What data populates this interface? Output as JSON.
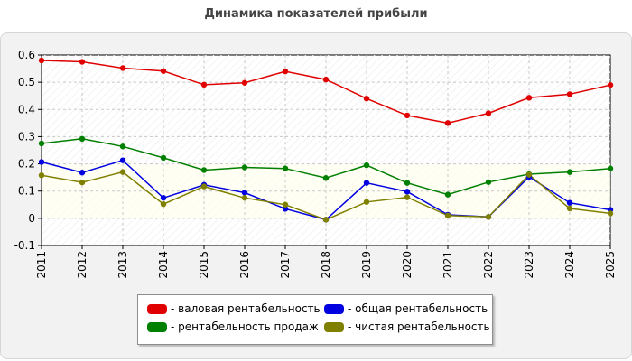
{
  "chart_data": {
    "type": "line",
    "title": "Динамика показателей прибыли",
    "x": [
      "2011",
      "2012",
      "2013",
      "2014",
      "2015",
      "2016",
      "2017",
      "2018",
      "2019",
      "2020",
      "2021",
      "2022",
      "2023",
      "2024",
      "2025"
    ],
    "ylim": [
      -0.1,
      0.6
    ],
    "yticks": [
      "0.6",
      "0.5",
      "0.4",
      "0.3",
      "0.2",
      "0.1",
      "0",
      "-0.1"
    ],
    "ytick_values": [
      0.6,
      0.5,
      0.4,
      0.3,
      0.2,
      0.1,
      0,
      -0.1
    ],
    "grid": true,
    "legend_position": "bottom",
    "series": [
      {
        "name": "- валовая рентабельность",
        "color": "#e00000",
        "values": [
          0.58,
          0.575,
          0.552,
          0.541,
          0.491,
          0.498,
          0.54,
          0.51,
          0.44,
          0.378,
          0.35,
          0.386,
          0.443,
          0.456,
          0.49
        ]
      },
      {
        "name": "- общая рентабельность",
        "color": "#0000e0",
        "values": [
          0.207,
          0.168,
          0.213,
          0.075,
          0.123,
          0.094,
          0.035,
          -0.005,
          0.13,
          0.098,
          0.013,
          0.005,
          0.152,
          0.057,
          0.031
        ]
      },
      {
        "name": "- рентабельность продаж",
        "color": "#008000",
        "values": [
          0.275,
          0.292,
          0.264,
          0.222,
          0.177,
          0.187,
          0.183,
          0.148,
          0.195,
          0.13,
          0.087,
          0.133,
          0.162,
          0.17,
          0.183
        ]
      },
      {
        "name": "- чистая рентабельность",
        "color": "#808000",
        "values": [
          0.158,
          0.132,
          0.17,
          0.052,
          0.117,
          0.075,
          0.05,
          -0.005,
          0.06,
          0.077,
          0.01,
          0.005,
          0.16,
          0.036,
          0.018
        ]
      }
    ]
  }
}
